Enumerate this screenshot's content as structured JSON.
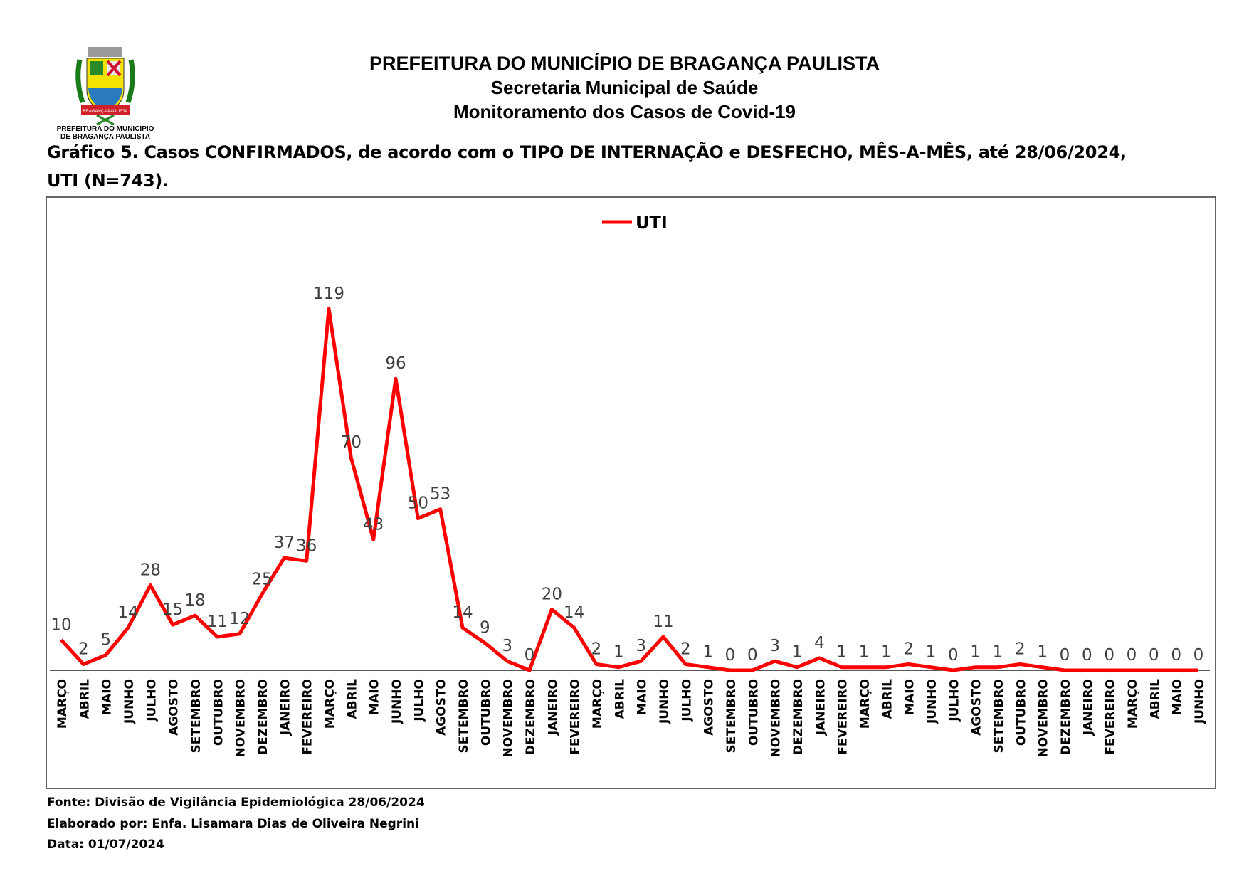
{
  "header": {
    "line1": "PREFEITURA DO MUNICÍPIO DE BRAGANÇA PAULISTA",
    "line2": "Secretaria Municipal de Saúde",
    "line3": "Monitoramento dos Casos de Covid-19"
  },
  "logo": {
    "text1": "PREFEITURA DO MUNICÍPIO",
    "text2": "DE BRAGANÇA PAULISTA",
    "ribbon": "BRAGANÇA PAULISTA"
  },
  "footer": {
    "source": "Fonte: Divisão de Vigilância Epidemiológica 28/06/2024",
    "author": "Elaborado por: Enfa. Lisamara Dias de Oliveira Negrini",
    "date": "Data: 01/07/2024"
  },
  "chart_data": {
    "type": "line",
    "title": "Gráfico 5. Casos CONFIRMADOS, de acordo com o TIPO DE INTERNAÇÃO e DESFECHO, MÊS-A-MÊS, até 28/06/2024,",
    "title2": "UTI (N=743).",
    "legend": "top-center",
    "line_color": "#ff0000",
    "categories": [
      "MARÇO",
      "ABRIL",
      "MAIO",
      "JUNHO",
      "JULHO",
      "AGOSTO",
      "SETEMBRO",
      "OUTUBRO",
      "NOVEMBRO",
      "DEZEMBRO",
      "JANEIRO",
      "FEVEREIRO",
      "MARÇO",
      "ABRIL",
      "MAIO",
      "JUNHO",
      "JULHO",
      "AGOSTO",
      "SETEMBRO",
      "OUTUBRO",
      "NOVEMBRO",
      "DEZEMBRO",
      "JANEIRO",
      "FEVEREIRO",
      "MARÇO",
      "ABRIL",
      "MAIO",
      "JUNHO",
      "JULHO",
      "AGOSTO",
      "SETEMBRO",
      "OUTUBRO",
      "NOVEMBRO",
      "DEZEMBRO",
      "JANEIRO",
      "FEVEREIRO",
      "MARÇO",
      "ABRIL",
      "MAIO",
      "JUNHO",
      "JULHO",
      "AGOSTO",
      "SETEMBRO",
      "OUTUBRO",
      "NOVEMBRO",
      "DEZEMBRO",
      "JANEIRO",
      "FEVEREIRO",
      "MARÇO",
      "ABRIL",
      "MAIO",
      "JUNHO"
    ],
    "series": [
      {
        "name": "UTI",
        "values": [
          10,
          2,
          5,
          14,
          28,
          15,
          18,
          11,
          12,
          25,
          37,
          36,
          119,
          70,
          43,
          96,
          50,
          53,
          14,
          9,
          3,
          0,
          20,
          14,
          2,
          1,
          3,
          11,
          2,
          1,
          0,
          0,
          3,
          1,
          4,
          1,
          1,
          1,
          2,
          1,
          0,
          1,
          1,
          2,
          1,
          0,
          0,
          0,
          0,
          0,
          0,
          0
        ]
      }
    ],
    "ylim": [
      0,
      119
    ],
    "grid": false,
    "xlabel": "",
    "ylabel": ""
  }
}
